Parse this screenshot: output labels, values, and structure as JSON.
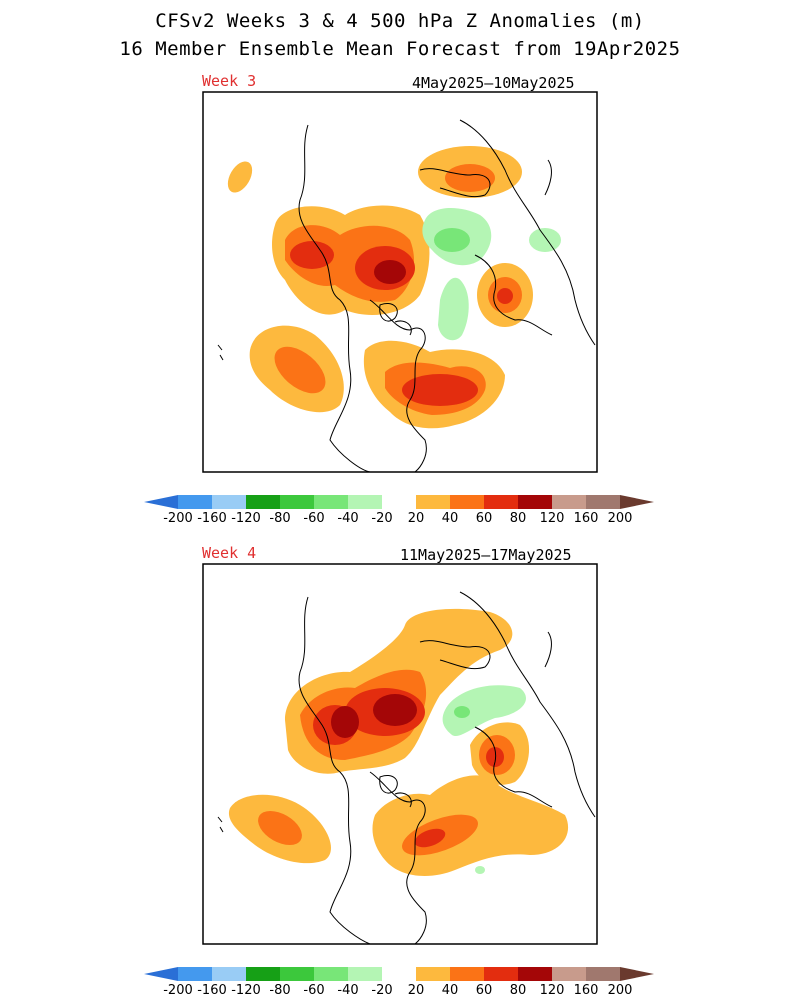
{
  "title_line1": "CFSv2 Weeks 3 & 4 500 hPa Z Anomalies (m)",
  "title_line2": "16 Member Ensemble Mean Forecast from 19Apr2025",
  "panels": [
    {
      "label": "Week 3",
      "dates": "4May2025–10May2025"
    },
    {
      "label": "Week 4",
      "dates": "11May2025–17May2025"
    }
  ],
  "colorbar": {
    "tick_labels": [
      "-200",
      "-160",
      "-120",
      "-80",
      "-60",
      "-40",
      "-20",
      "20",
      "40",
      "60",
      "80",
      "120",
      "160",
      "200"
    ],
    "colors": [
      "#2a6fd6",
      "#4499ee",
      "#99ccf5",
      "#16a016",
      "#3cc83c",
      "#78e678",
      "#b4f5b4",
      "#ffffff",
      "#fdb93e",
      "#fb7316",
      "#e32d0f",
      "#a40607",
      "#c89b8c",
      "#a0786e",
      "#6a3a2e"
    ]
  },
  "legend_units": "m"
}
